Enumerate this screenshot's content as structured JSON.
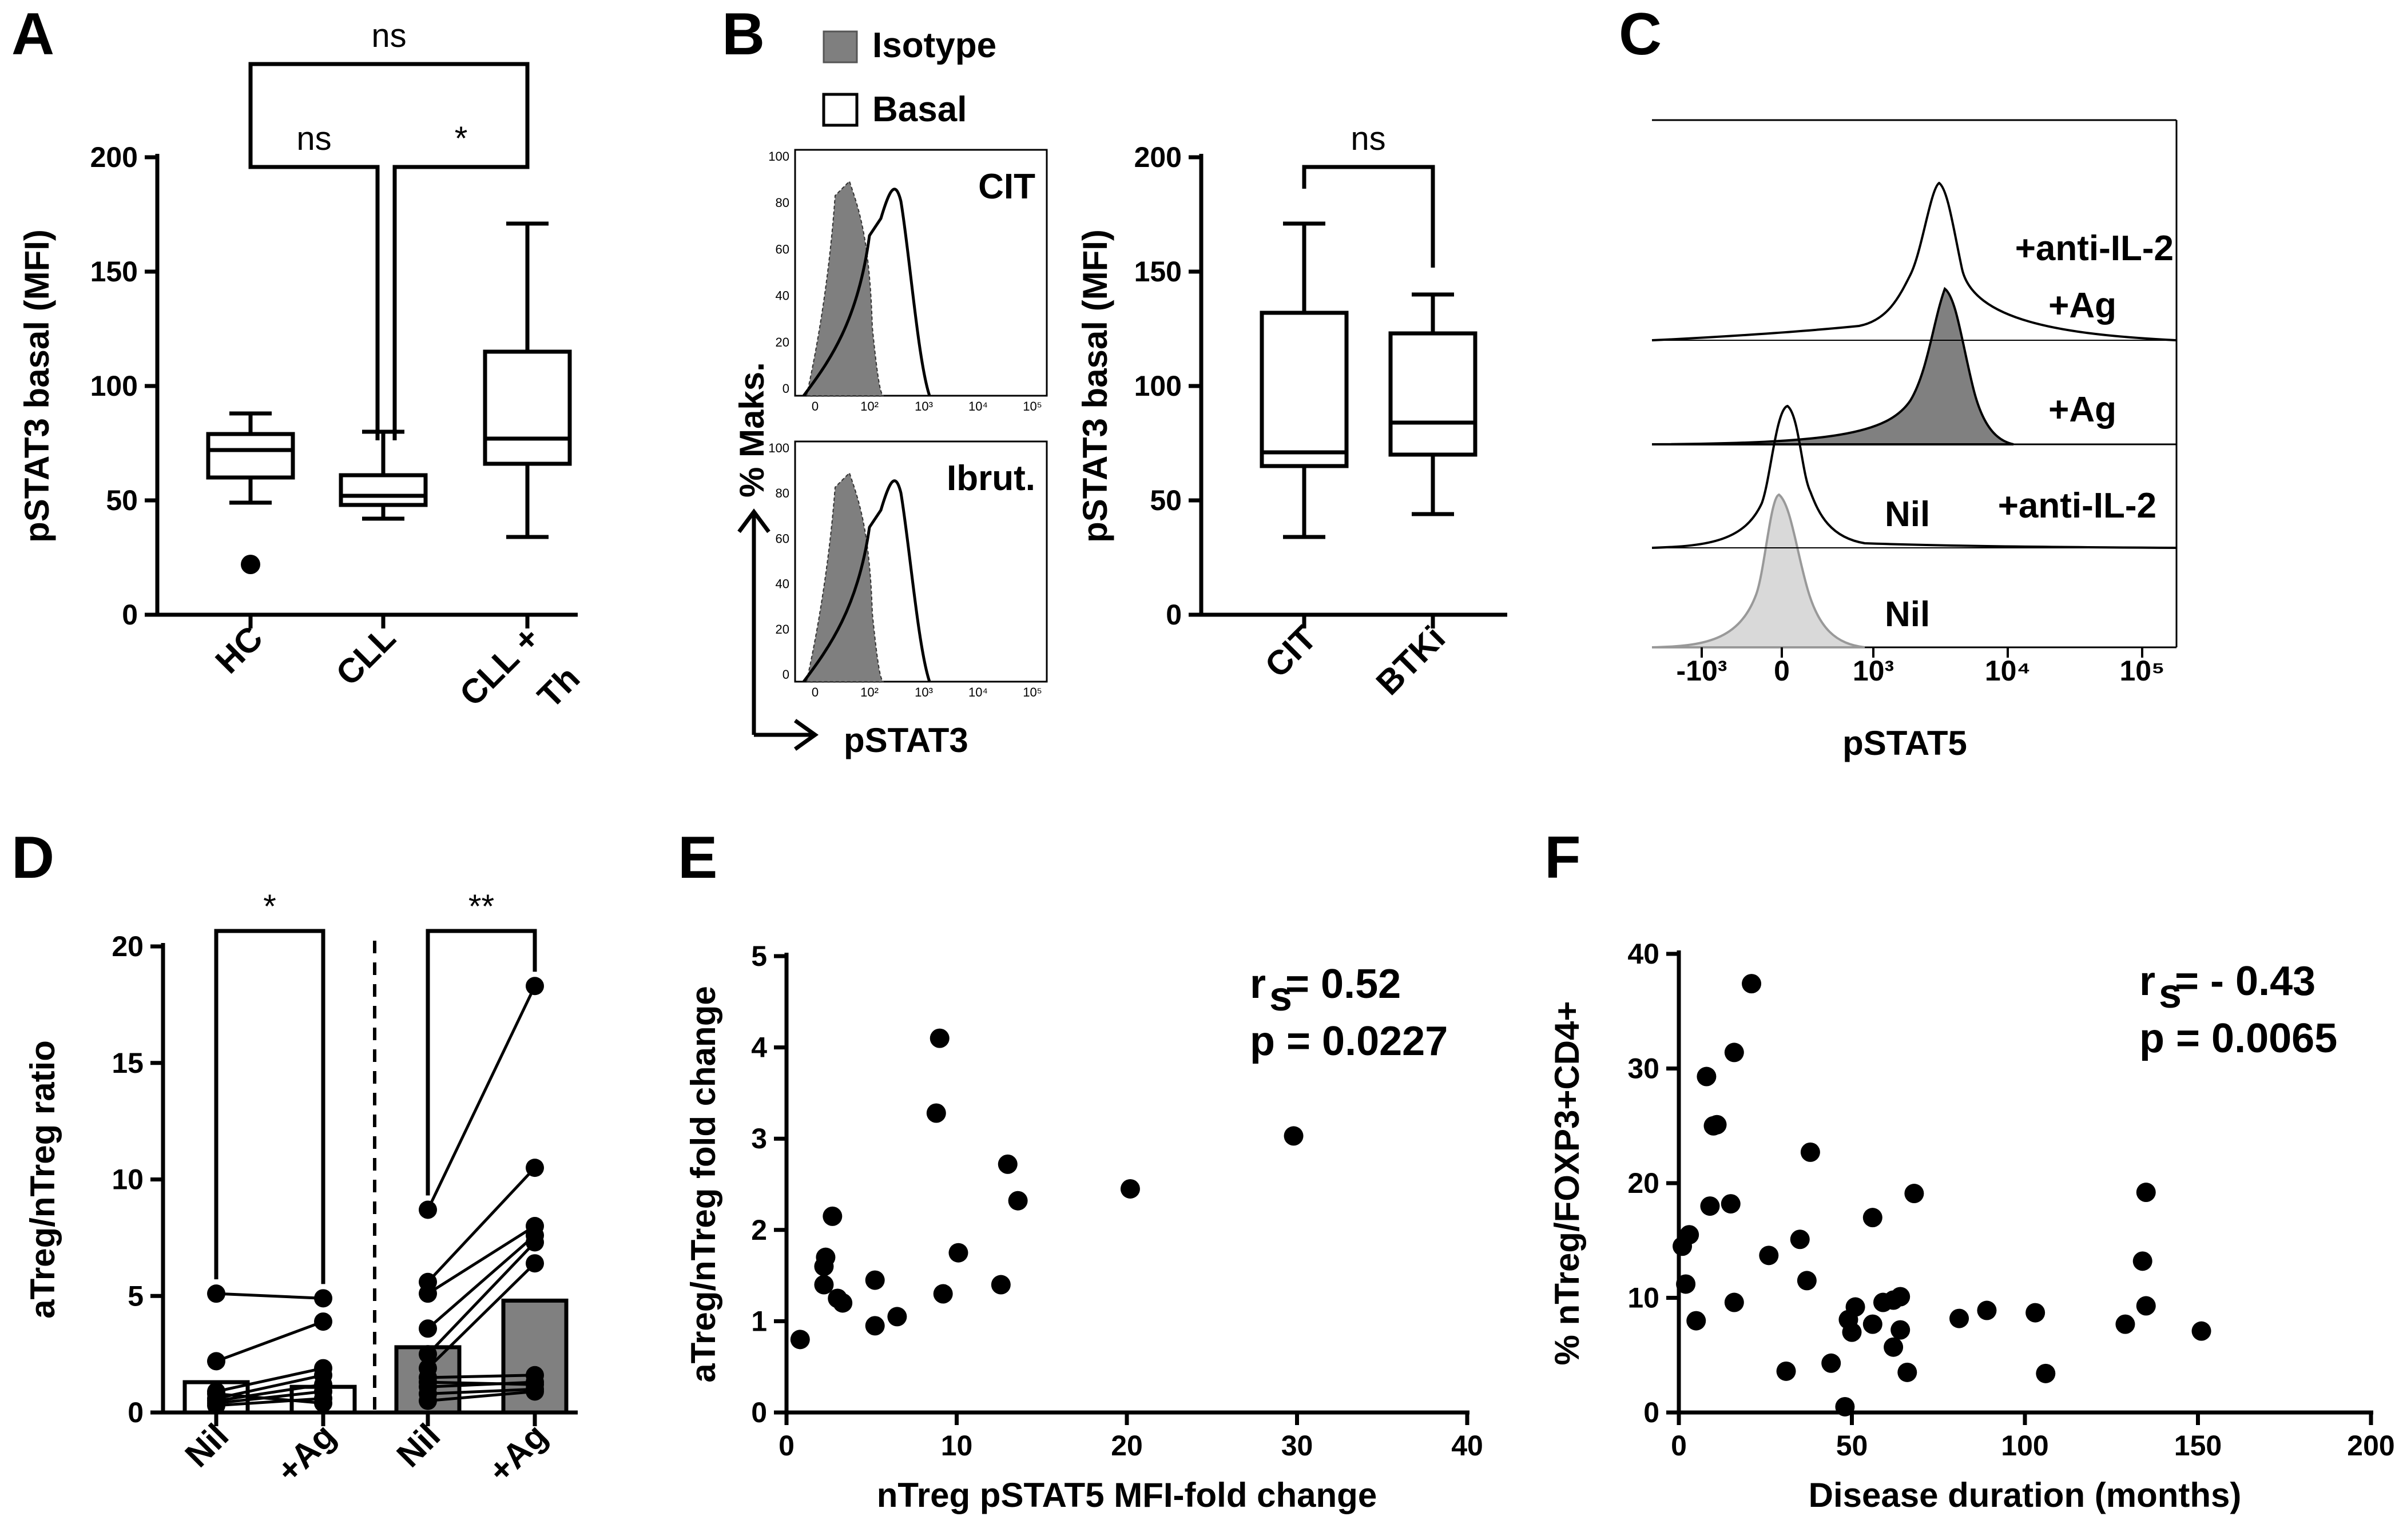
{
  "panel_labels": {
    "A": "A",
    "B": "B",
    "C": "C",
    "D": "D",
    "E": "E",
    "F": "F"
  },
  "chart_data": [
    {
      "panel": "A",
      "type": "box",
      "ylabel": "pSTAT3 basal (MFI)",
      "ylim": [
        0,
        200
      ],
      "yticks": [
        0,
        50,
        100,
        150,
        200
      ],
      "categories": [
        "HC",
        "CLL",
        "CLL +\nTh"
      ],
      "boxes": [
        {
          "name": "HC",
          "min": 49,
          "q1": 60,
          "median": 72,
          "q3": 79,
          "max": 88,
          "outliers": [
            22
          ]
        },
        {
          "name": "CLL",
          "min": 42,
          "q1": 48,
          "median": 52,
          "q3": 61,
          "max": 80,
          "outliers": []
        },
        {
          "name": "CLL + Th",
          "min": 34,
          "q1": 66,
          "median": 77,
          "q3": 115,
          "max": 171,
          "outliers": []
        }
      ],
      "comparisons": [
        {
          "from": "HC",
          "to": "CLL + Th",
          "label": "ns"
        },
        {
          "from": "HC",
          "to": "CLL",
          "label": "ns"
        },
        {
          "from": "CLL",
          "to": "CLL + Th",
          "label": "*"
        }
      ]
    },
    {
      "panel": "B",
      "type": "histogram",
      "legend": [
        {
          "label": "Isotype",
          "fill": "#7f7f7f"
        },
        {
          "label": "Basal",
          "fill": "#ffffff"
        }
      ],
      "ylabel": "% Maks.",
      "xlabel": "pSTAT3",
      "yticks": [
        "100",
        "80",
        "60",
        "40",
        "20",
        "0"
      ],
      "xticks": [
        "0",
        "10²",
        "10³",
        "10⁴",
        "10⁵"
      ],
      "subpanels": [
        "CIT",
        "Ibrut."
      ]
    },
    {
      "panel": "B",
      "type": "box",
      "ylabel": "pSTAT3 basal (MFI)",
      "ylim": [
        0,
        200
      ],
      "yticks": [
        0,
        50,
        100,
        150,
        200
      ],
      "categories": [
        "CIT",
        "BTKi"
      ],
      "boxes": [
        {
          "name": "CIT",
          "min": 34,
          "q1": 65,
          "median": 71,
          "q3": 132,
          "max": 171
        },
        {
          "name": "BTKi",
          "min": 44,
          "q1": 70,
          "median": 84,
          "q3": 123,
          "max": 140
        }
      ],
      "comparisons": [
        {
          "from": "CIT",
          "to": "BTKi",
          "label": "ns"
        }
      ]
    },
    {
      "panel": "C",
      "type": "histogram",
      "xlabel": "pSTAT5",
      "xticks": [
        "-10³",
        "0",
        "10³",
        "10⁴",
        "10⁵"
      ],
      "tracks": [
        "+anti-IL-2\n+Ag",
        "+Ag",
        "Nil +anti-IL-2",
        "Nil"
      ],
      "track_labels": {
        "t1a": "+anti-IL-2",
        "t1b": "+Ag",
        "t2": "+Ag",
        "t3a": "Nil",
        "t3b": "+anti-IL-2",
        "t4": "Nil"
      }
    },
    {
      "panel": "D",
      "type": "bar",
      "ylabel": "aTreg/nTreg ratio",
      "ylim": [
        0,
        20
      ],
      "yticks": [
        0,
        5,
        10,
        15,
        20
      ],
      "categories": [
        "Nil",
        "+Ag",
        "Nil",
        "+Ag"
      ],
      "bar_values": [
        1.3,
        1.1,
        2.8,
        4.8
      ],
      "bar_colors": [
        "#ffffff",
        "#ffffff",
        "#808080",
        "#808080"
      ],
      "pairs_group1": [
        [
          5.1,
          4.9
        ],
        [
          2.2,
          3.9
        ],
        [
          0.9,
          1.9
        ],
        [
          0.6,
          1.6
        ],
        [
          0.5,
          1.2
        ],
        [
          0.4,
          0.9
        ],
        [
          0.3,
          0.6
        ],
        [
          0.8,
          0.4
        ]
      ],
      "pairs_group2": [
        [
          8.7,
          18.3
        ],
        [
          5.6,
          10.5
        ],
        [
          5.1,
          8.0
        ],
        [
          3.6,
          7.6
        ],
        [
          2.5,
          7.3
        ],
        [
          1.9,
          6.4
        ],
        [
          1.5,
          1.6
        ],
        [
          1.1,
          1.3
        ],
        [
          0.8,
          1.0
        ],
        [
          0.5,
          0.9
        ],
        [
          1.3,
          1.2
        ]
      ],
      "comparisons": [
        {
          "label": "*"
        },
        {
          "label": "**"
        }
      ]
    },
    {
      "panel": "E",
      "type": "scatter",
      "xlabel": "nTreg  pSTAT5 MFI-fold change",
      "ylabel": "aTreg/nTreg  fold change",
      "xlim": [
        0,
        40
      ],
      "ylim": [
        0,
        5
      ],
      "xticks": [
        0,
        10,
        20,
        30,
        40
      ],
      "yticks": [
        0,
        1,
        2,
        3,
        4,
        5
      ],
      "annotation_r": "r",
      "annotation_r_sub": "s",
      "annotation_r_val": "= 0.52",
      "annotation_p": "p = 0.0227",
      "points": [
        [
          0.8,
          0.8
        ],
        [
          2.2,
          1.6
        ],
        [
          2.2,
          1.4
        ],
        [
          2.3,
          1.7
        ],
        [
          2.7,
          2.15
        ],
        [
          3.0,
          1.25
        ],
        [
          3.3,
          1.2
        ],
        [
          5.2,
          1.45
        ],
        [
          5.2,
          0.95
        ],
        [
          6.5,
          1.05
        ],
        [
          8.8,
          3.28
        ],
        [
          9.0,
          4.1
        ],
        [
          9.2,
          1.3
        ],
        [
          10.1,
          1.75
        ],
        [
          12.6,
          1.4
        ],
        [
          13.0,
          2.72
        ],
        [
          13.6,
          2.32
        ],
        [
          20.2,
          2.45
        ],
        [
          29.8,
          3.03
        ]
      ]
    },
    {
      "panel": "F",
      "type": "scatter",
      "xlabel": "Disease duration (months)",
      "ylabel": "% nTreg/FOXP3+CD4+",
      "xlim": [
        0,
        200
      ],
      "ylim": [
        0,
        40
      ],
      "xticks": [
        0,
        50,
        100,
        150,
        200
      ],
      "yticks": [
        0,
        10,
        20,
        30,
        40
      ],
      "annotation_r": "r",
      "annotation_r_sub": "s",
      "annotation_r_val": "= - 0.43",
      "annotation_p": "p = 0.0065",
      "points": [
        [
          1,
          14.5
        ],
        [
          2,
          11.2
        ],
        [
          3,
          15.5
        ],
        [
          5,
          8.0
        ],
        [
          8,
          29.3
        ],
        [
          9,
          18.0
        ],
        [
          10,
          25.0
        ],
        [
          11,
          25.1
        ],
        [
          15,
          18.2
        ],
        [
          16,
          31.4
        ],
        [
          16,
          9.6
        ],
        [
          21,
          37.4
        ],
        [
          26,
          13.7
        ],
        [
          31,
          3.6
        ],
        [
          35,
          15.1
        ],
        [
          37,
          11.5
        ],
        [
          38,
          22.7
        ],
        [
          44,
          4.3
        ],
        [
          48,
          0.5
        ],
        [
          49,
          8.1
        ],
        [
          50,
          7.0
        ],
        [
          51,
          9.2
        ],
        [
          56,
          17.0
        ],
        [
          56,
          7.7
        ],
        [
          59,
          9.6
        ],
        [
          62,
          9.8
        ],
        [
          62,
          5.7
        ],
        [
          64,
          10.1
        ],
        [
          64,
          7.2
        ],
        [
          66,
          3.5
        ],
        [
          68,
          19.1
        ],
        [
          81,
          8.2
        ],
        [
          89,
          8.9
        ],
        [
          103,
          8.7
        ],
        [
          106,
          3.4
        ],
        [
          129,
          7.7
        ],
        [
          134,
          13.2
        ],
        [
          135,
          9.3
        ],
        [
          135,
          19.2
        ],
        [
          151,
          7.1
        ]
      ]
    }
  ]
}
